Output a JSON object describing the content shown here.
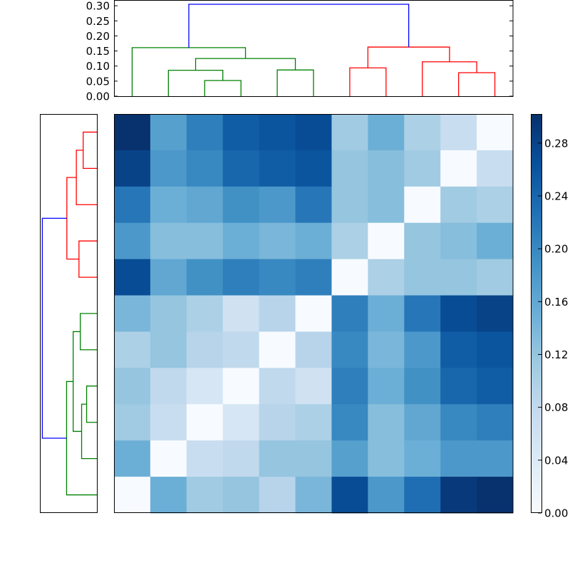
{
  "chart_data": [
    {
      "type": "dendrogram",
      "name": "top-dendrogram",
      "orientation": "top",
      "ylim": [
        0.0,
        0.3
      ],
      "yticks": [
        "0.00",
        "0.05",
        "0.10",
        "0.15",
        "0.20",
        "0.25",
        "0.30"
      ],
      "leaf_count": 11,
      "links": [
        {
          "left": 2,
          "right": 3,
          "height": 0.052,
          "color": "#008000"
        },
        {
          "left": 1,
          "right": 2.5,
          "height": 0.086,
          "color": "#008000"
        },
        {
          "left": 4,
          "right": 5,
          "height": 0.087,
          "color": "#008000"
        },
        {
          "left": 1.75,
          "right": 4.5,
          "height": 0.125,
          "color": "#008000"
        },
        {
          "left": 0,
          "right": 3.125,
          "height": 0.161,
          "color": "#008000"
        },
        {
          "left": 6,
          "right": 7,
          "height": 0.094,
          "color": "#ff0000"
        },
        {
          "left": 9,
          "right": 10,
          "height": 0.078,
          "color": "#ff0000"
        },
        {
          "left": 8,
          "right": 9.5,
          "height": 0.114,
          "color": "#ff0000"
        },
        {
          "left": 6.5,
          "right": 8.75,
          "height": 0.163,
          "color": "#ff0000"
        },
        {
          "left": 1.5625,
          "right": 7.625,
          "height": 0.305,
          "color": "#0000ff"
        }
      ]
    },
    {
      "type": "dendrogram",
      "name": "left-dendrogram",
      "orientation": "left",
      "leaf_count": 11,
      "links": [
        {
          "left": 0,
          "right": 1,
          "height": 0.052,
          "color": "#ff0000"
        },
        {
          "left": 0.5,
          "right": 2,
          "height": 0.078,
          "color": "#ff0000"
        },
        {
          "left": 3,
          "right": 4,
          "height": 0.068,
          "color": "#ff0000"
        },
        {
          "left": 1.25,
          "right": 3.5,
          "height": 0.114,
          "color": "#ff0000"
        },
        {
          "left": 5,
          "right": 6,
          "height": 0.063,
          "color": "#008000"
        },
        {
          "left": 7,
          "right": 8,
          "height": 0.039,
          "color": "#008000"
        },
        {
          "left": 7.5,
          "right": 9,
          "height": 0.058,
          "color": "#008000"
        },
        {
          "left": 5.5,
          "right": 8.25,
          "height": 0.09,
          "color": "#008000"
        },
        {
          "left": 6.875,
          "right": 10,
          "height": 0.115,
          "color": "#008000"
        },
        {
          "left": 2.375,
          "right": 8.4375,
          "height": 0.207,
          "color": "#0000ff"
        }
      ]
    },
    {
      "type": "heatmap",
      "name": "distance-matrix",
      "colormap": "Blues",
      "rows": 11,
      "cols": 11,
      "values": [
        [
          0.3,
          0.17,
          0.21,
          0.25,
          0.26,
          0.27,
          0.11,
          0.15,
          0.1,
          0.07,
          0.0
        ],
        [
          0.28,
          0.18,
          0.2,
          0.24,
          0.25,
          0.26,
          0.12,
          0.13,
          0.11,
          0.0,
          0.07
        ],
        [
          0.22,
          0.15,
          0.16,
          0.19,
          0.18,
          0.22,
          0.12,
          0.13,
          0.0,
          0.11,
          0.1
        ],
        [
          0.18,
          0.13,
          0.13,
          0.15,
          0.14,
          0.15,
          0.1,
          0.0,
          0.12,
          0.13,
          0.15
        ],
        [
          0.27,
          0.16,
          0.19,
          0.21,
          0.2,
          0.21,
          0.0,
          0.1,
          0.12,
          0.12,
          0.11
        ],
        [
          0.14,
          0.12,
          0.1,
          0.06,
          0.09,
          0.0,
          0.21,
          0.15,
          0.22,
          0.27,
          0.28
        ],
        [
          0.1,
          0.12,
          0.09,
          0.08,
          0.0,
          0.09,
          0.2,
          0.14,
          0.18,
          0.25,
          0.26
        ],
        [
          0.12,
          0.08,
          0.05,
          0.0,
          0.08,
          0.06,
          0.21,
          0.15,
          0.19,
          0.24,
          0.25
        ],
        [
          0.11,
          0.07,
          0.0,
          0.05,
          0.09,
          0.1,
          0.2,
          0.13,
          0.16,
          0.2,
          0.21
        ],
        [
          0.15,
          0.0,
          0.07,
          0.08,
          0.12,
          0.12,
          0.17,
          0.13,
          0.15,
          0.18,
          0.18
        ],
        [
          0.0,
          0.15,
          0.11,
          0.12,
          0.09,
          0.14,
          0.27,
          0.18,
          0.23,
          0.29,
          0.3
        ]
      ]
    },
    {
      "type": "colorbar",
      "name": "colorbar",
      "colormap": "Blues",
      "range": [
        0.0,
        0.302
      ],
      "ticks": [
        "0.00",
        "0.04",
        "0.08",
        "0.12",
        "0.16",
        "0.20",
        "0.24",
        "0.28"
      ]
    }
  ],
  "colors": {
    "cluster_a": "#008000",
    "cluster_b": "#ff0000",
    "root_link": "#0000ff",
    "axis": "#000000"
  }
}
